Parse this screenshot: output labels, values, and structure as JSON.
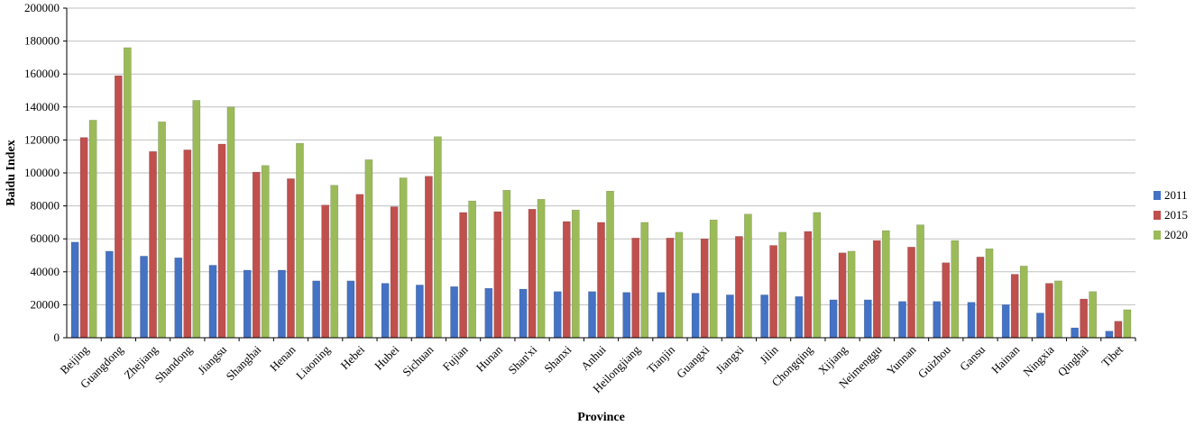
{
  "chart_data": {
    "type": "bar",
    "title": "",
    "xlabel": "Province",
    "ylabel": "Baidu Index",
    "ylim": [
      0,
      200000
    ],
    "yticks": [
      "0",
      "20000",
      "40000",
      "60000",
      "80000",
      "100000",
      "120000",
      "140000",
      "160000",
      "180000",
      "200000"
    ],
    "grid": true,
    "legend_position": "right",
    "categories": [
      "Beijing",
      "Guangdong",
      "Zhejiang",
      "Shandong",
      "Jiangsu",
      "Shanghai",
      "Henan",
      "Liaoning",
      "Hebei",
      "Hubei",
      "Sichuan",
      "Fujian",
      "Hunan",
      "Shan'xi",
      "Shanxi",
      "Anhui",
      "Heilongjiang",
      "Tianjin",
      "Guangxi",
      "Jiangxi",
      "Jilin",
      "Chongqing",
      "Xijiang",
      "Neimenggu",
      "Yunnan",
      "Guizhou",
      "Gansu",
      "Hainan",
      "Ningxia",
      "Qinghai",
      "Tibet"
    ],
    "series": [
      {
        "name": "2011",
        "color": "#4472C4",
        "values": [
          58000,
          52500,
          49500,
          48500,
          44000,
          41000,
          41000,
          34500,
          34500,
          33000,
          32000,
          31000,
          30000,
          29500,
          28000,
          28000,
          27500,
          27500,
          27000,
          26000,
          26000,
          25000,
          23000,
          23000,
          22000,
          22000,
          21500,
          20000,
          15000,
          6000,
          4000
        ]
      },
      {
        "name": "2015",
        "color": "#C0504D",
        "values": [
          121500,
          159000,
          113000,
          114000,
          117500,
          100500,
          96500,
          80500,
          87000,
          79500,
          98000,
          76000,
          76500,
          78000,
          70500,
          70000,
          60500,
          60500,
          60000,
          61500,
          56000,
          64500,
          51500,
          59000,
          55000,
          45500,
          49000,
          38500,
          33000,
          23500,
          10000
        ]
      },
      {
        "name": "2020",
        "color": "#9BBB59",
        "values": [
          132000,
          176000,
          131000,
          144000,
          140000,
          104500,
          118000,
          92500,
          108000,
          97000,
          122000,
          83000,
          89500,
          84000,
          77500,
          89000,
          70000,
          64000,
          71500,
          75000,
          64000,
          76000,
          52500,
          65000,
          68500,
          59000,
          54000,
          43500,
          34500,
          28000,
          17000
        ]
      }
    ]
  }
}
